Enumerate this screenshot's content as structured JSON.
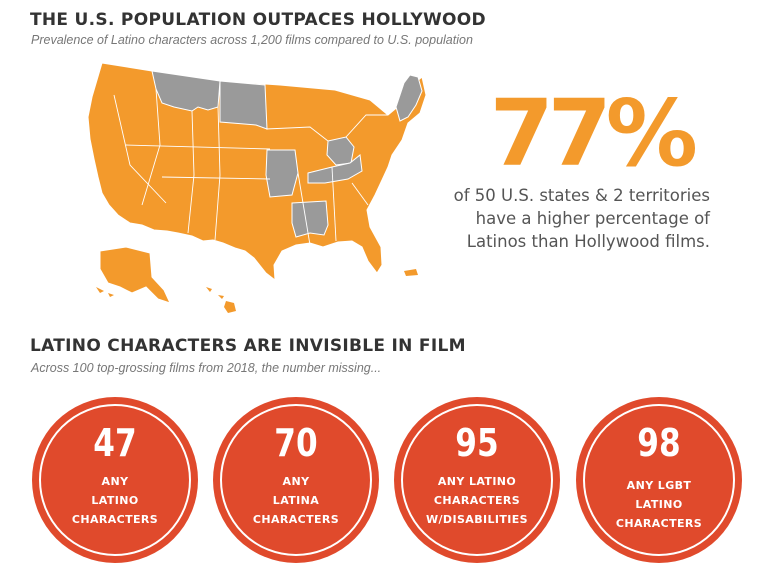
{
  "section1": {
    "title": "THE U.S. POPULATION OUTPACES HOLLYWOOD",
    "subtitle": "Prevalence of Latino characters across 1,200 films compared to U.S. population",
    "stat": "77%",
    "note_lines": [
      "of 50 U.S. states & 2 territories",
      "have a higher percentage of",
      "Latinos than Hollywood films."
    ]
  },
  "section2": {
    "title": "LATINO CHARACTERS ARE INVISIBLE IN FILM",
    "subtitle": "Across 100 top-grossing films from 2018, the number missing...",
    "circles": [
      {
        "number": "47",
        "lines": [
          "ANY",
          "LATINO",
          "CHARACTERS"
        ]
      },
      {
        "number": "70",
        "lines": [
          "ANY",
          "LATINA",
          "CHARACTERS"
        ]
      },
      {
        "number": "95",
        "lines": [
          "ANY LATINO",
          "CHARACTERS",
          "W/DISABILITIES"
        ]
      },
      {
        "number": "98",
        "lines": [
          "ANY LGBT",
          "LATINO",
          "CHARACTERS"
        ]
      }
    ]
  },
  "colors": {
    "map_highlight": "#f39a2c",
    "map_other": "#9a9a9a",
    "stat_color": "#f39a2c",
    "circle_fill": "#e04a2c"
  }
}
